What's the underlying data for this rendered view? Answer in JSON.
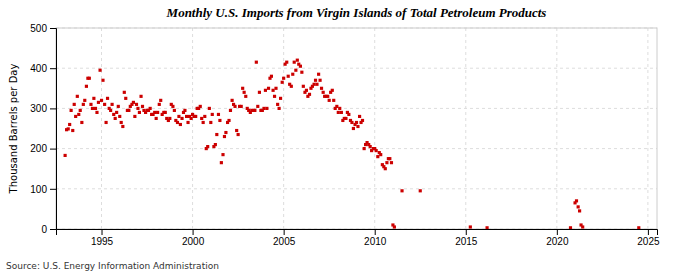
{
  "chart_data": {
    "type": "scatter",
    "title": "Monthly U.S. Imports from Virgin Islands of Total Petroleum Products",
    "y_label": "Thousand Barrels per Day",
    "annotations": [
      "Source: U.S. Energy Information Administration"
    ],
    "color": "#cc0000",
    "marker": "square",
    "grid": true,
    "xlim": [
      1992.5,
      2025.5
    ],
    "xticks": [
      1995,
      2000,
      2005,
      2010,
      2015,
      2020,
      2025
    ],
    "ylim": [
      0,
      500
    ],
    "yticks": [
      0,
      100,
      200,
      300,
      400,
      500
    ],
    "x": [
      1993.0,
      1993.08,
      1993.17,
      1993.25,
      1993.33,
      1993.42,
      1993.5,
      1993.58,
      1993.67,
      1993.75,
      1993.83,
      1993.92,
      1994.0,
      1994.08,
      1994.17,
      1994.25,
      1994.33,
      1994.42,
      1994.5,
      1994.58,
      1994.67,
      1994.75,
      1994.83,
      1994.92,
      1995.0,
      1995.08,
      1995.17,
      1995.25,
      1995.33,
      1995.42,
      1995.5,
      1995.58,
      1995.67,
      1995.75,
      1995.83,
      1995.92,
      1996.0,
      1996.08,
      1996.17,
      1996.25,
      1996.33,
      1996.42,
      1996.5,
      1996.58,
      1996.67,
      1996.75,
      1996.83,
      1996.92,
      1997.0,
      1997.08,
      1997.17,
      1997.25,
      1997.33,
      1997.42,
      1997.5,
      1997.58,
      1997.67,
      1997.75,
      1997.83,
      1997.92,
      1998.0,
      1998.08,
      1998.17,
      1998.25,
      1998.33,
      1998.42,
      1998.5,
      1998.58,
      1998.67,
      1998.75,
      1998.83,
      1998.92,
      1999.0,
      1999.08,
      1999.17,
      1999.25,
      1999.33,
      1999.42,
      1999.5,
      1999.58,
      1999.67,
      1999.75,
      1999.83,
      1999.92,
      2000.0,
      2000.08,
      2000.17,
      2000.25,
      2000.33,
      2000.42,
      2000.5,
      2000.58,
      2000.67,
      2000.75,
      2000.83,
      2000.92,
      2001.0,
      2001.08,
      2001.17,
      2001.25,
      2001.33,
      2001.42,
      2001.5,
      2001.58,
      2001.67,
      2001.75,
      2001.83,
      2001.92,
      2002.0,
      2002.08,
      2002.17,
      2002.25,
      2002.33,
      2002.42,
      2002.5,
      2002.58,
      2002.67,
      2002.75,
      2002.83,
      2002.92,
      2003.0,
      2003.08,
      2003.17,
      2003.25,
      2003.33,
      2003.42,
      2003.5,
      2003.58,
      2003.67,
      2003.75,
      2003.83,
      2003.92,
      2004.0,
      2004.08,
      2004.17,
      2004.25,
      2004.33,
      2004.42,
      2004.5,
      2004.58,
      2004.67,
      2004.75,
      2004.83,
      2004.92,
      2005.0,
      2005.08,
      2005.17,
      2005.25,
      2005.33,
      2005.42,
      2005.5,
      2005.58,
      2005.67,
      2005.75,
      2005.83,
      2005.92,
      2006.0,
      2006.08,
      2006.17,
      2006.25,
      2006.33,
      2006.42,
      2006.5,
      2006.58,
      2006.67,
      2006.75,
      2006.83,
      2006.92,
      2007.0,
      2007.08,
      2007.17,
      2007.25,
      2007.33,
      2007.42,
      2007.5,
      2007.58,
      2007.67,
      2007.75,
      2007.83,
      2007.92,
      2008.0,
      2008.08,
      2008.17,
      2008.25,
      2008.33,
      2008.42,
      2008.5,
      2008.58,
      2008.67,
      2008.75,
      2008.83,
      2008.92,
      2009.0,
      2009.08,
      2009.17,
      2009.25,
      2009.33,
      2009.42,
      2009.5,
      2009.58,
      2009.67,
      2009.75,
      2009.83,
      2009.92,
      2010.0,
      2010.08,
      2010.17,
      2010.25,
      2010.33,
      2010.42,
      2010.5,
      2010.58,
      2010.67,
      2010.75,
      2010.83,
      2010.92,
      2011.0,
      2011.08,
      2011.5,
      2012.5,
      2015.25,
      2016.17,
      2020.75,
      2021.0,
      2021.08,
      2021.17,
      2021.25,
      2021.33,
      2021.42,
      2024.5
    ],
    "values": [
      183,
      247,
      249,
      260,
      295,
      245,
      310,
      280,
      330,
      285,
      295,
      265,
      310,
      320,
      355,
      375,
      375,
      310,
      300,
      325,
      300,
      290,
      315,
      395,
      320,
      370,
      310,
      265,
      325,
      300,
      295,
      310,
      285,
      275,
      290,
      305,
      280,
      265,
      255,
      340,
      325,
      295,
      295,
      305,
      310,
      315,
      280,
      310,
      300,
      290,
      330,
      305,
      295,
      290,
      295,
      295,
      300,
      285,
      285,
      290,
      275,
      290,
      310,
      320,
      285,
      290,
      290,
      275,
      270,
      275,
      310,
      305,
      295,
      270,
      265,
      280,
      260,
      275,
      290,
      295,
      280,
      265,
      280,
      275,
      285,
      280,
      280,
      300,
      300,
      305,
      275,
      265,
      280,
      200,
      205,
      300,
      265,
      285,
      205,
      210,
      235,
      285,
      270,
      165,
      185,
      230,
      240,
      265,
      270,
      295,
      320,
      310,
      305,
      245,
      235,
      305,
      305,
      350,
      340,
      330,
      300,
      295,
      290,
      295,
      295,
      295,
      415,
      305,
      340,
      295,
      295,
      300,
      345,
      300,
      350,
      375,
      380,
      345,
      330,
      350,
      310,
      300,
      325,
      365,
      375,
      410,
      415,
      380,
      360,
      355,
      385,
      415,
      395,
      420,
      410,
      405,
      390,
      355,
      340,
      345,
      330,
      335,
      350,
      355,
      360,
      370,
      360,
      385,
      370,
      350,
      340,
      330,
      330,
      330,
      320,
      340,
      345,
      320,
      300,
      305,
      290,
      300,
      290,
      270,
      275,
      275,
      290,
      285,
      270,
      265,
      250,
      260,
      265,
      255,
      280,
      265,
      270,
      200,
      210,
      215,
      210,
      205,
      195,
      200,
      200,
      195,
      180,
      190,
      185,
      160,
      155,
      150,
      165,
      175,
      175,
      165,
      10,
      5,
      95,
      95,
      5,
      3,
      3,
      65,
      70,
      55,
      45,
      10,
      5,
      3
    ]
  }
}
